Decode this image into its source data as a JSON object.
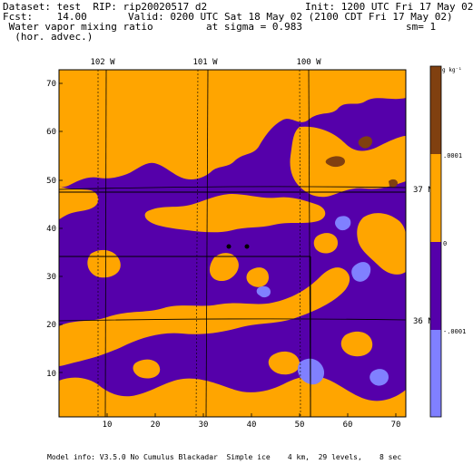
{
  "header": {
    "dataset": "Dataset: test  RIP: rip20020517 d2",
    "init": "Init: 1200 UTC Fri 17 May 02",
    "fcst": "Fcst:    14.00",
    "valid": "Valid: 0200 UTC Sat 18 May 02 (2100 CDT Fri 17 May 02)",
    "field": " Water vapor mixing ratio",
    "sigma": "at sigma = 0.983",
    "sm": "sm= 1",
    "advec": "  (hor. advec.)"
  },
  "map": {
    "lon_labels": [
      "102 W",
      "101 W",
      "100 W"
    ],
    "lat_labels": [
      "37 N",
      "36 N"
    ],
    "x_ticks": [
      "10",
      "20",
      "30",
      "40",
      "50",
      "60",
      "70"
    ],
    "y_ticks": [
      "10",
      "20",
      "30",
      "40",
      "50",
      "60",
      "70"
    ],
    "grid_range": {
      "x": [
        1,
        73
      ],
      "y": [
        1,
        73
      ]
    }
  },
  "colorbar": {
    "unit": "g kg⁻¹",
    "levels": [
      ".0001",
      "0",
      "-.0001"
    ],
    "colors": {
      "above_0001": "#804010",
      "0_to_0001": "#ffa500",
      "neg_0001_to_0": "#5500aa",
      "below_neg_0001": "#8080ff"
    }
  },
  "footer": {
    "model_info": "Model info: V3.5.0 No Cumulus Blackadar  Simple ice    4 km,  29 levels,    8 sec"
  }
}
